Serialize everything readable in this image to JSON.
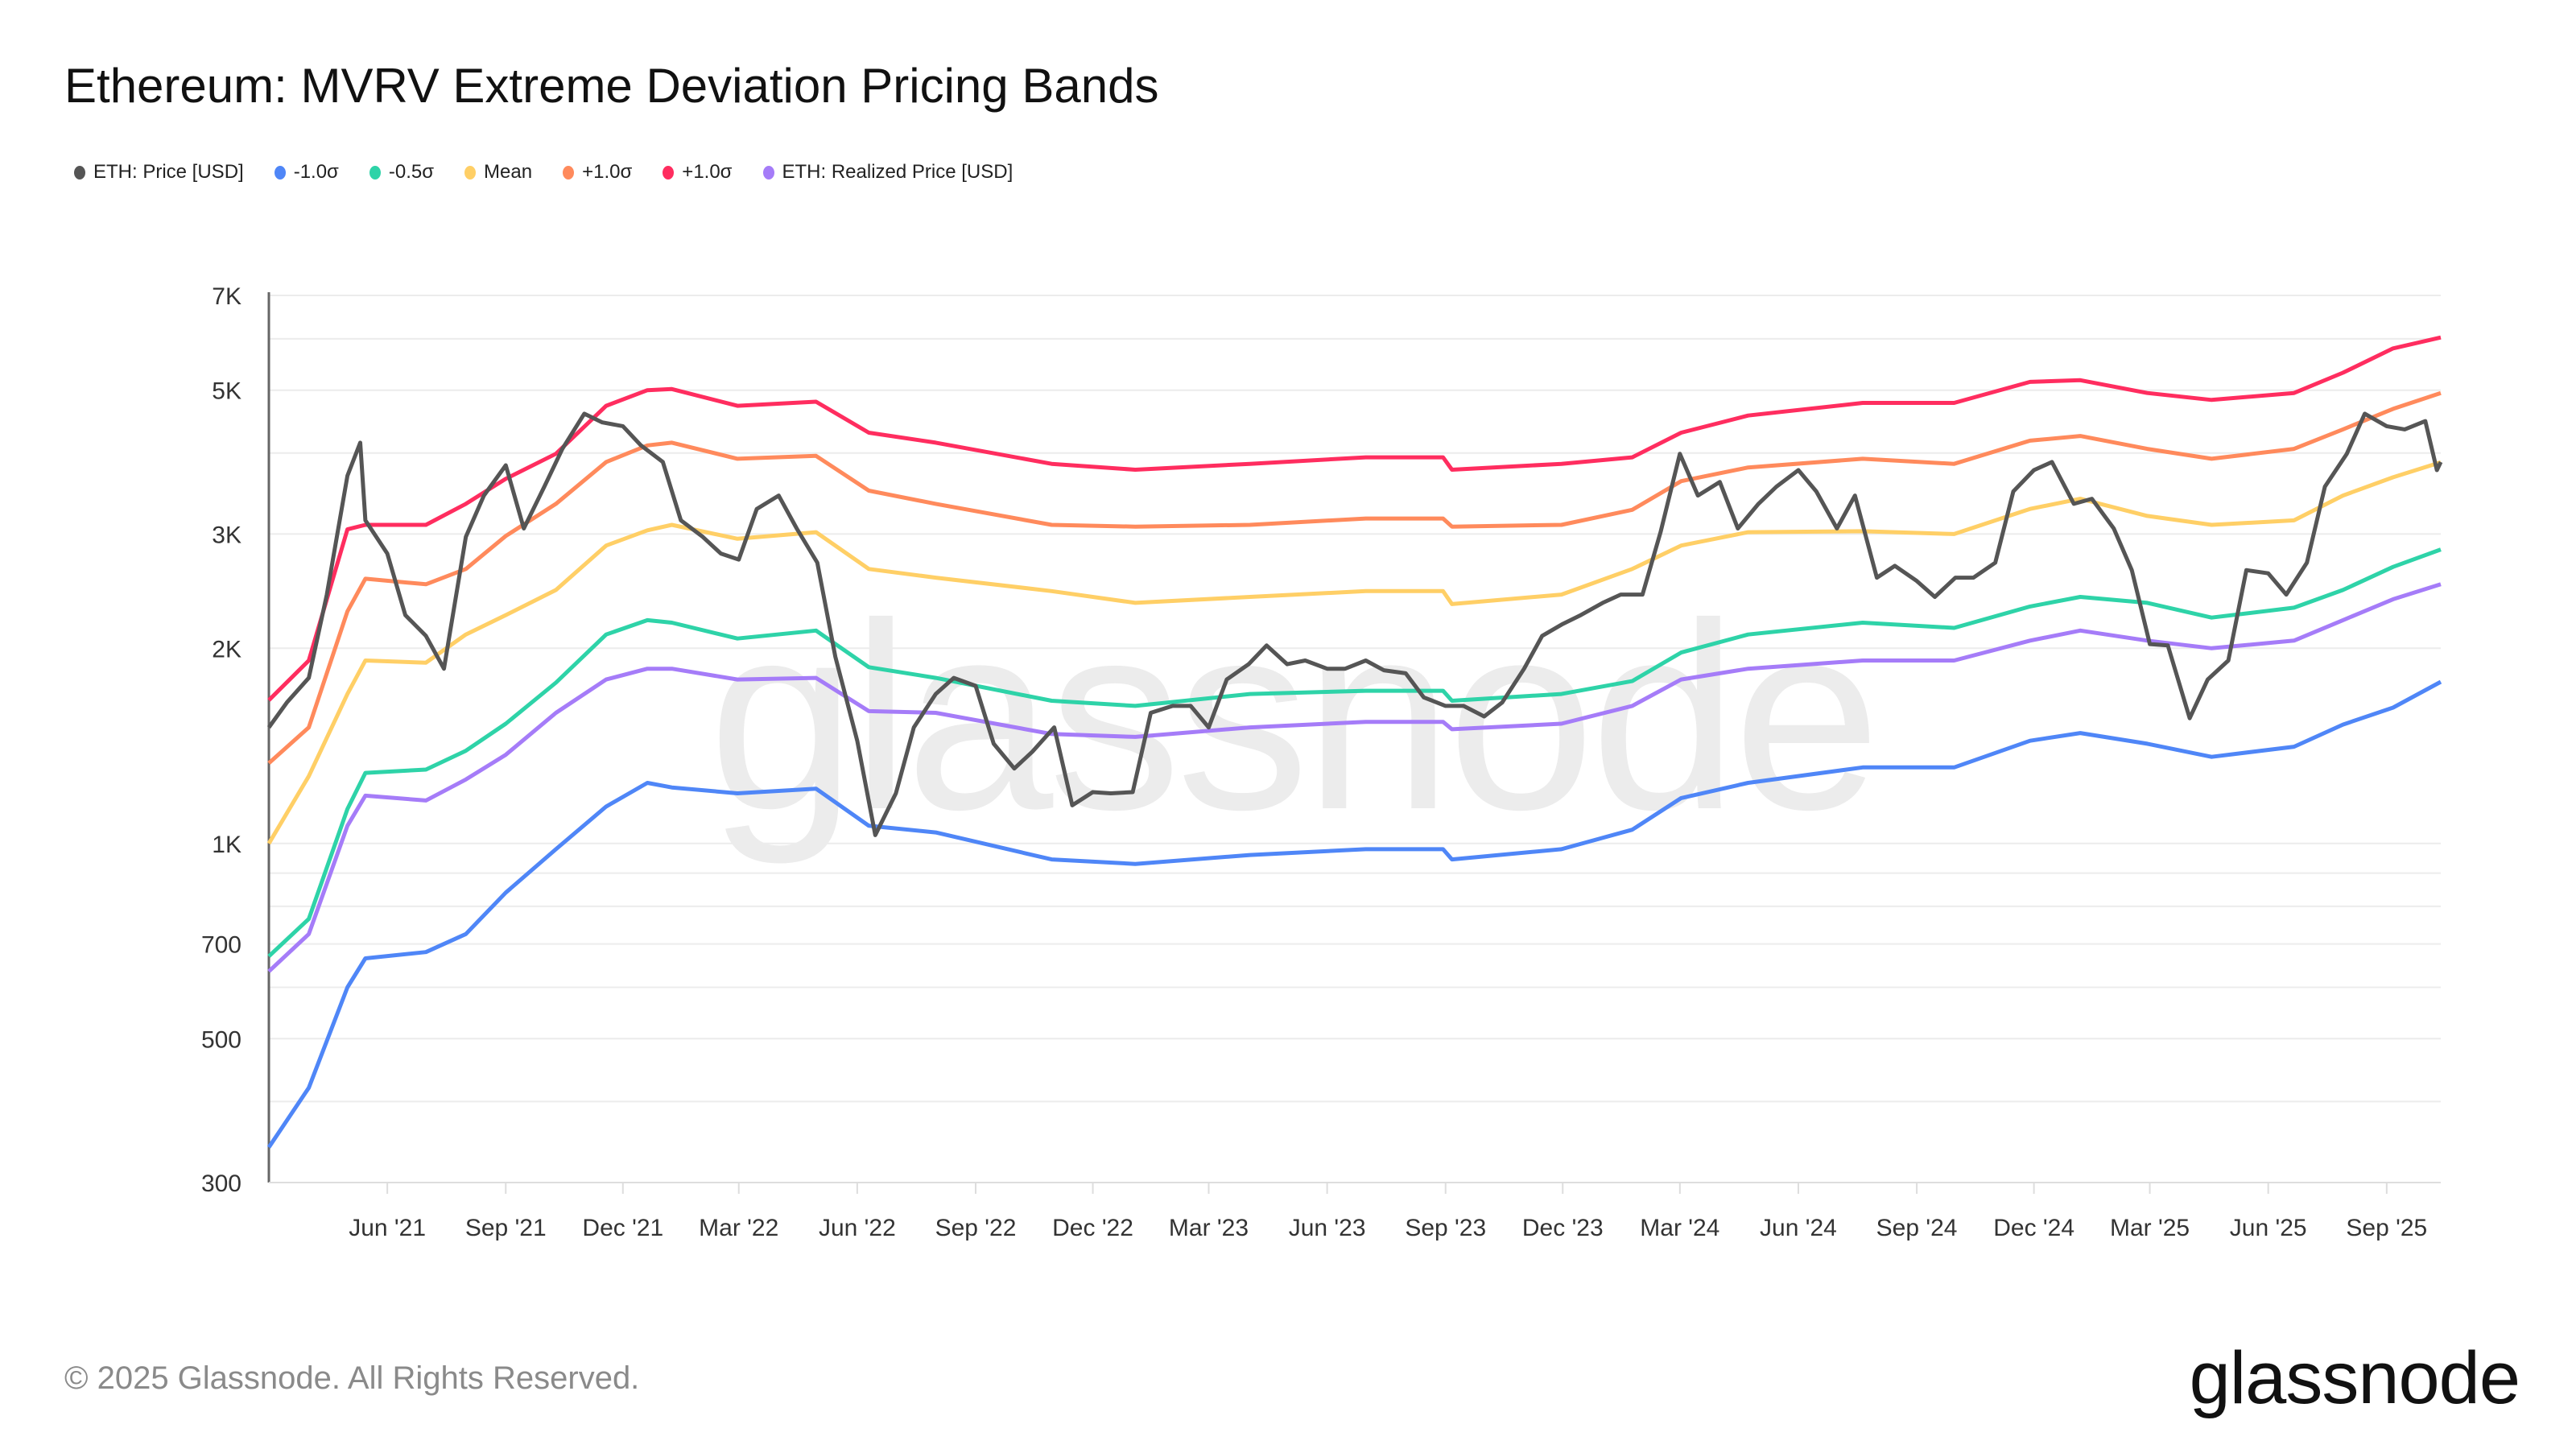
{
  "title": "Ethereum: MVRV Extreme Deviation Pricing Bands",
  "footer": "© 2025 Glassnode. All Rights Reserved.",
  "logo_text": "glassnode",
  "watermark_text": "glassnode",
  "chart_data": {
    "type": "line",
    "title": "Ethereum: MVRV Extreme Deviation Pricing Bands",
    "xlabel": "",
    "ylabel": "",
    "yscale": "log",
    "ylim": [
      300,
      7000
    ],
    "xlim": [
      "2021-03-01",
      "2025-10-13"
    ],
    "grid": true,
    "legend_position": "top-left",
    "y_tick_labels": [
      {
        "value": 300,
        "label": "300"
      },
      {
        "value": 500,
        "label": "500"
      },
      {
        "value": 700,
        "label": "700"
      },
      {
        "value": 1000,
        "label": "1K"
      },
      {
        "value": 2000,
        "label": "2K"
      },
      {
        "value": 3000,
        "label": "3K"
      },
      {
        "value": 5000,
        "label": "5K"
      },
      {
        "value": 7000,
        "label": "7K"
      }
    ],
    "y_gridlines": [
      300,
      400,
      500,
      600,
      700,
      800,
      900,
      1000,
      2000,
      3000,
      4000,
      5000,
      6000,
      7000
    ],
    "x_tick_labels": [
      {
        "date": "2021-06-01",
        "label": "Jun '21"
      },
      {
        "date": "2021-09-01",
        "label": "Sep '21"
      },
      {
        "date": "2021-12-01",
        "label": "Dec '21"
      },
      {
        "date": "2022-03-01",
        "label": "Mar '22"
      },
      {
        "date": "2022-06-01",
        "label": "Jun '22"
      },
      {
        "date": "2022-09-01",
        "label": "Sep '22"
      },
      {
        "date": "2022-12-01",
        "label": "Dec '22"
      },
      {
        "date": "2023-03-01",
        "label": "Mar '23"
      },
      {
        "date": "2023-06-01",
        "label": "Jun '23"
      },
      {
        "date": "2023-09-01",
        "label": "Sep '23"
      },
      {
        "date": "2023-12-01",
        "label": "Dec '23"
      },
      {
        "date": "2024-03-01",
        "label": "Mar '24"
      },
      {
        "date": "2024-06-01",
        "label": "Jun '24"
      },
      {
        "date": "2024-09-01",
        "label": "Sep '24"
      },
      {
        "date": "2024-12-01",
        "label": "Dec '24"
      },
      {
        "date": "2025-03-01",
        "label": "Mar '25"
      },
      {
        "date": "2025-06-01",
        "label": "Jun '25"
      },
      {
        "date": "2025-09-01",
        "label": "Sep '25"
      }
    ],
    "band_dates": [
      "2021-03-01",
      "2021-04-01",
      "2021-05-01",
      "2021-05-15",
      "2021-07-01",
      "2021-08-01",
      "2021-09-01",
      "2021-10-10",
      "2021-11-18",
      "2021-12-20",
      "2022-01-08",
      "2022-02-28",
      "2022-04-30",
      "2022-06-10",
      "2022-08-01",
      "2022-10-30",
      "2023-01-03",
      "2023-04-02",
      "2023-07-01",
      "2023-08-30",
      "2023-09-06",
      "2023-11-30",
      "2024-01-24",
      "2024-03-02",
      "2024-04-23",
      "2024-07-21",
      "2024-09-30",
      "2024-11-28",
      "2025-01-06",
      "2025-02-27",
      "2025-04-18",
      "2025-06-21",
      "2025-07-29",
      "2025-09-06",
      "2025-10-13"
    ],
    "price_dates": [
      "2021-03-01",
      "2021-03-15",
      "2021-04-01",
      "2021-04-15",
      "2021-05-01",
      "2021-05-11",
      "2021-05-15",
      "2021-06-01",
      "2021-06-15",
      "2021-07-01",
      "2021-07-15",
      "2021-08-01",
      "2021-08-15",
      "2021-09-01",
      "2021-09-15",
      "2021-10-01",
      "2021-10-15",
      "2021-11-01",
      "2021-11-15",
      "2021-12-01",
      "2021-12-15",
      "2022-01-01",
      "2022-01-15",
      "2022-02-01",
      "2022-02-15",
      "2022-03-01",
      "2022-03-15",
      "2022-04-01",
      "2022-04-15",
      "2022-05-01",
      "2022-05-15",
      "2022-06-01",
      "2022-06-15",
      "2022-07-01",
      "2022-07-15",
      "2022-08-01",
      "2022-08-15",
      "2022-09-01",
      "2022-09-15",
      "2022-10-01",
      "2022-10-15",
      "2022-11-01",
      "2022-11-15",
      "2022-12-01",
      "2022-12-15",
      "2023-01-01",
      "2023-01-15",
      "2023-02-01",
      "2023-02-15",
      "2023-03-01",
      "2023-03-15",
      "2023-04-01",
      "2023-04-15",
      "2023-05-01",
      "2023-05-15",
      "2023-06-01",
      "2023-06-15",
      "2023-07-01",
      "2023-07-15",
      "2023-08-01",
      "2023-08-15",
      "2023-09-01",
      "2023-09-15",
      "2023-10-01",
      "2023-10-15",
      "2023-11-01",
      "2023-11-15",
      "2023-12-01",
      "2023-12-15",
      "2024-01-01",
      "2024-01-15",
      "2024-02-01",
      "2024-02-15",
      "2024-03-01",
      "2024-03-15",
      "2024-04-01",
      "2024-04-15",
      "2024-05-01",
      "2024-05-15",
      "2024-06-01",
      "2024-06-15",
      "2024-07-01",
      "2024-07-15",
      "2024-08-01",
      "2024-08-15",
      "2024-09-01",
      "2024-09-15",
      "2024-10-01",
      "2024-10-15",
      "2024-11-01",
      "2024-11-15",
      "2024-12-01",
      "2024-12-15",
      "2025-01-01",
      "2025-01-15",
      "2025-02-01",
      "2025-02-15",
      "2025-03-01",
      "2025-03-15",
      "2025-04-01",
      "2025-04-15",
      "2025-05-01",
      "2025-05-15",
      "2025-06-01",
      "2025-06-15",
      "2025-07-01",
      "2025-07-15",
      "2025-08-01",
      "2025-08-15",
      "2025-09-01",
      "2025-09-15",
      "2025-10-01",
      "2025-10-10",
      "2025-10-13"
    ],
    "series": [
      {
        "name": "ETH: Price [USD]",
        "color": "#555555",
        "dates_key": "price_dates",
        "values": [
          1510,
          1650,
          1800,
          2420,
          3690,
          4150,
          3150,
          2800,
          2250,
          2090,
          1860,
          2970,
          3440,
          3830,
          3060,
          3550,
          4060,
          4600,
          4460,
          4400,
          4110,
          3875,
          3150,
          2970,
          2800,
          2740,
          3280,
          3440,
          3060,
          2710,
          1940,
          1440,
          1030,
          1195,
          1510,
          1700,
          1800,
          1750,
          1425,
          1305,
          1385,
          1510,
          1145,
          1200,
          1195,
          1200,
          1590,
          1630,
          1630,
          1510,
          1790,
          1890,
          2020,
          1890,
          1915,
          1860,
          1860,
          1915,
          1850,
          1830,
          1680,
          1630,
          1630,
          1570,
          1650,
          1860,
          2090,
          2180,
          2250,
          2350,
          2420,
          2420,
          3020,
          3990,
          3440,
          3610,
          3060,
          3340,
          3550,
          3765,
          3490,
          3060,
          3440,
          2570,
          2680,
          2540,
          2400,
          2570,
          2570,
          2710,
          3490,
          3765,
          3875,
          3340,
          3400,
          3060,
          2640,
          2030,
          2020,
          1560,
          1790,
          1915,
          2640,
          2610,
          2420,
          2710,
          3550,
          3990,
          4600,
          4400,
          4350,
          4480,
          3765,
          3875
        ]
      },
      {
        "name": "-1.0σ",
        "color": "#4f86f7",
        "dates_key": "band_dates",
        "values": [
          340,
          420,
          600,
          665,
          680,
          725,
          840,
          980,
          1140,
          1240,
          1220,
          1195,
          1215,
          1065,
          1040,
          945,
          930,
          960,
          980,
          980,
          945,
          980,
          1050,
          1175,
          1240,
          1310,
          1310,
          1440,
          1480,
          1425,
          1360,
          1410,
          1525,
          1620,
          1775
        ]
      },
      {
        "name": "-0.5σ",
        "color": "#2ed3a8",
        "dates_key": "band_dates",
        "values": [
          670,
          765,
          1130,
          1285,
          1300,
          1390,
          1530,
          1770,
          2100,
          2210,
          2190,
          2070,
          2130,
          1870,
          1800,
          1660,
          1630,
          1700,
          1720,
          1720,
          1660,
          1700,
          1780,
          1970,
          2100,
          2190,
          2150,
          2320,
          2400,
          2350,
          2230,
          2310,
          2460,
          2670,
          2840
        ]
      },
      {
        "name": "Mean",
        "color": "#ffcf66",
        "dates_key": "band_dates",
        "values": [
          1000,
          1270,
          1700,
          1915,
          1900,
          2100,
          2250,
          2460,
          2880,
          3040,
          3100,
          2950,
          3020,
          2650,
          2570,
          2450,
          2350,
          2400,
          2450,
          2450,
          2340,
          2420,
          2650,
          2880,
          3020,
          3030,
          3000,
          3280,
          3400,
          3200,
          3100,
          3150,
          3440,
          3670,
          3870
        ]
      },
      {
        "name": "+1.0σ",
        "color": "#ff8a5c",
        "dates_key": "band_dates",
        "values": [
          1330,
          1510,
          2280,
          2560,
          2510,
          2650,
          2980,
          3340,
          3875,
          4110,
          4150,
          3920,
          3960,
          3500,
          3340,
          3100,
          3080,
          3100,
          3170,
          3170,
          3080,
          3100,
          3270,
          3620,
          3800,
          3920,
          3850,
          4180,
          4250,
          4060,
          3920,
          4060,
          4350,
          4680,
          4950
        ]
      },
      {
        "name": "+1.0σ",
        "color": "#ff2d5f",
        "dates_key": "band_dates",
        "values": [
          1663,
          1915,
          3050,
          3100,
          3100,
          3340,
          3650,
          3990,
          4730,
          5000,
          5020,
          4730,
          4800,
          4300,
          4150,
          3850,
          3770,
          3850,
          3940,
          3940,
          3770,
          3850,
          3940,
          4300,
          4570,
          4780,
          4780,
          5150,
          5180,
          4950,
          4830,
          4950,
          5320,
          5800,
          6030
        ]
      },
      {
        "name": "ETH: Realized Price [USD]",
        "color": "#a57cf8",
        "dates_key": "band_dates",
        "values": [
          635,
          725,
          1065,
          1185,
          1165,
          1255,
          1370,
          1590,
          1790,
          1860,
          1860,
          1790,
          1800,
          1600,
          1590,
          1475,
          1460,
          1510,
          1540,
          1540,
          1500,
          1530,
          1630,
          1790,
          1860,
          1915,
          1915,
          2055,
          2130,
          2055,
          2000,
          2055,
          2210,
          2380,
          2510
        ]
      }
    ]
  }
}
